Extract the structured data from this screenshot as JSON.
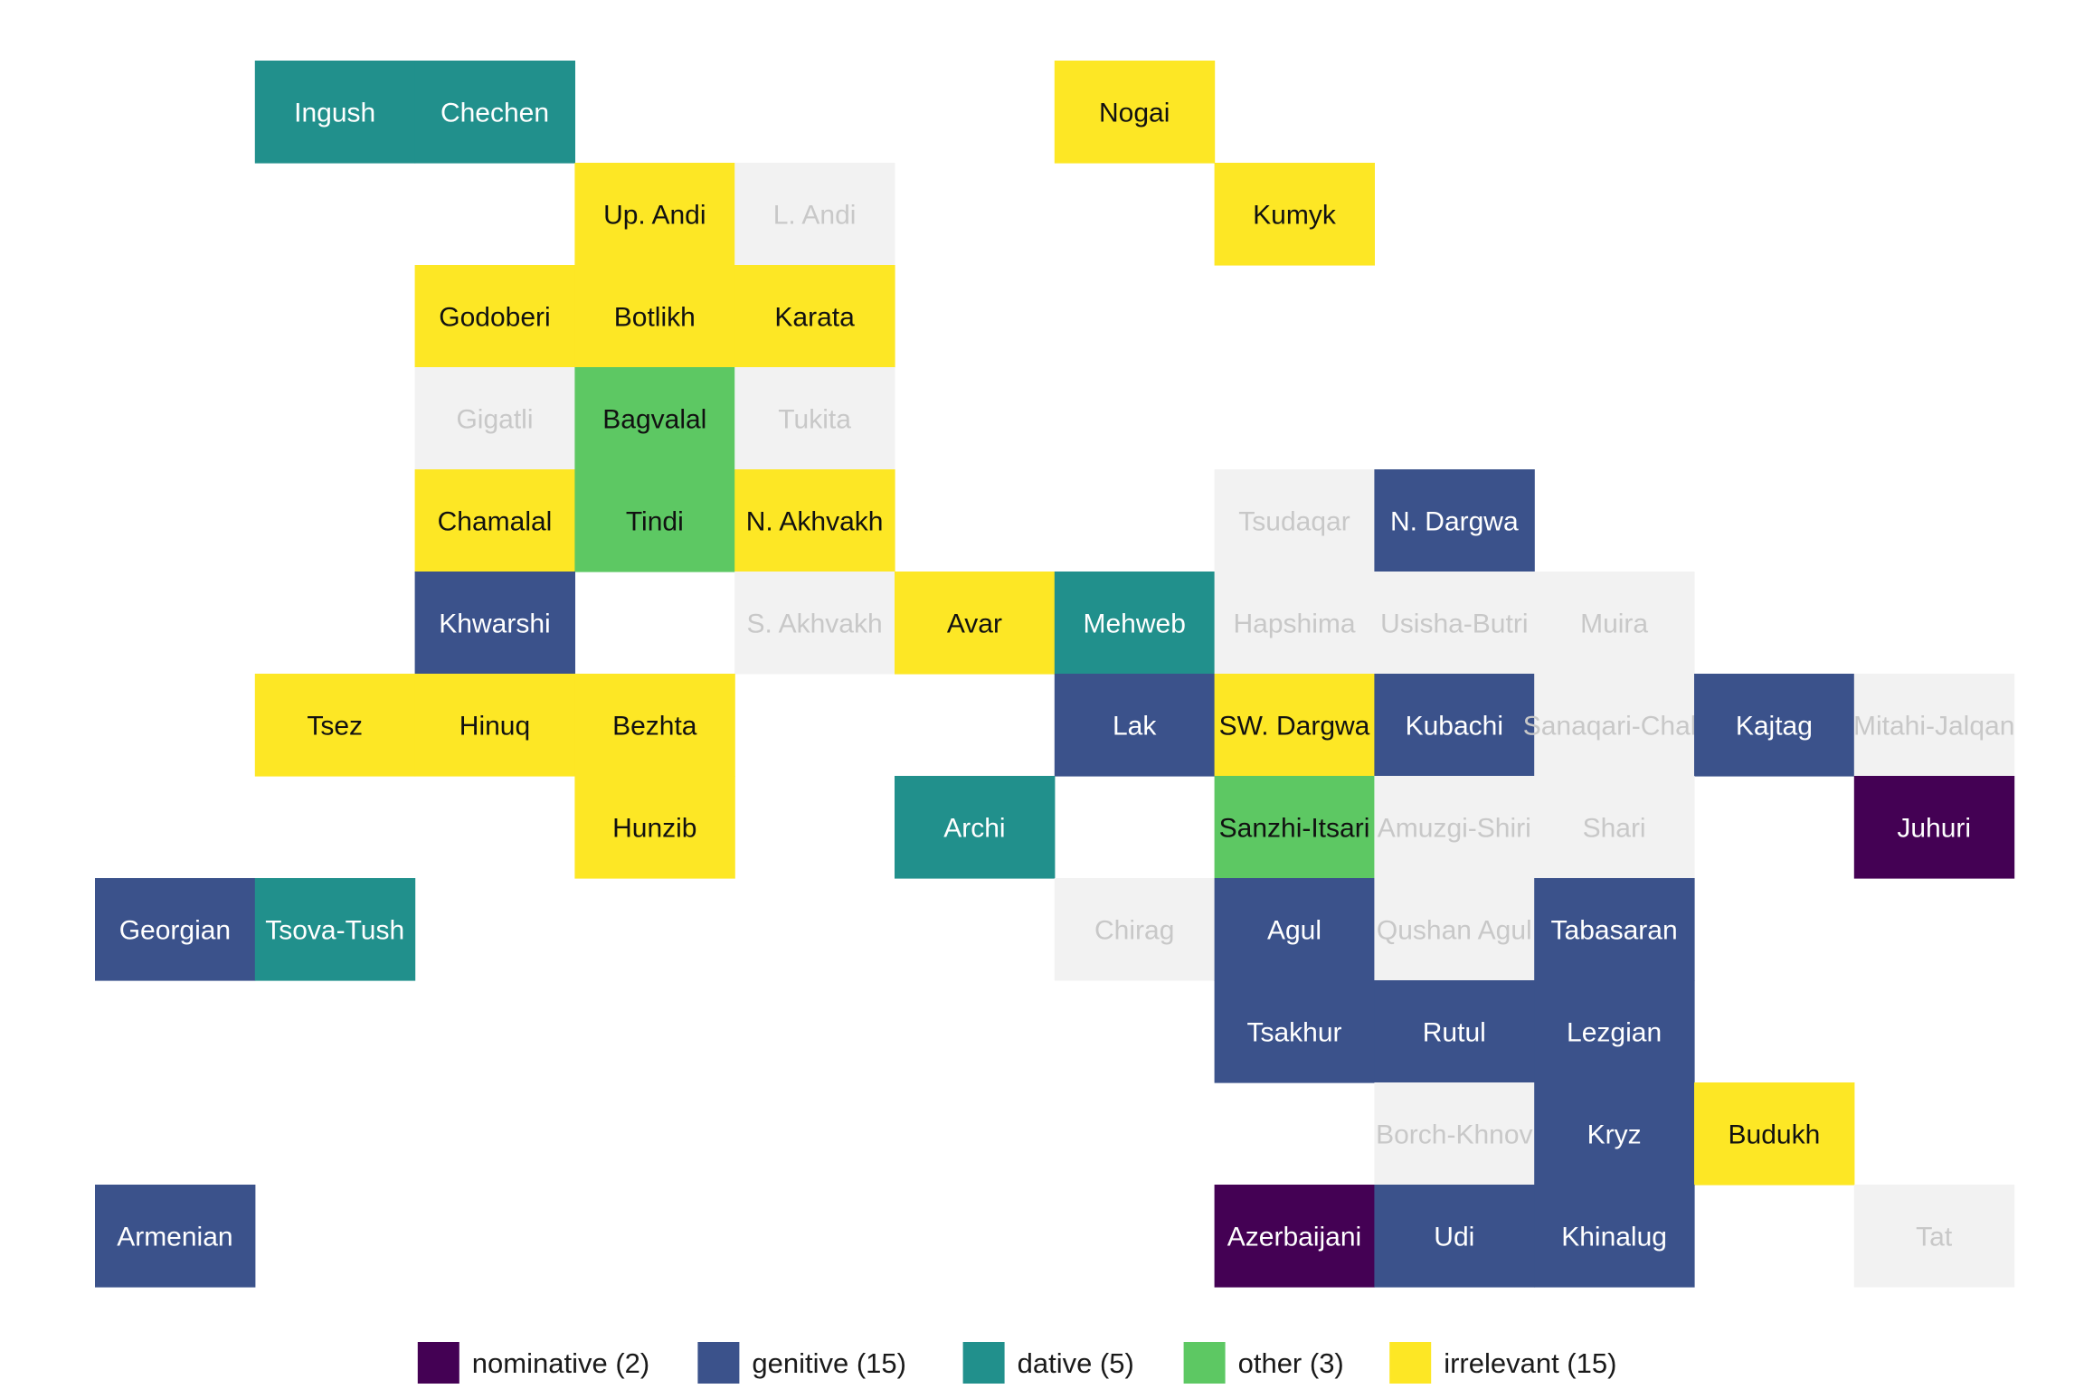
{
  "chart_data": {
    "type": "heatmap",
    "title": "",
    "categories": [
      {
        "key": "nominative",
        "label": "nominative (2)",
        "color": "#440154"
      },
      {
        "key": "genitive",
        "label": "genitive (15)",
        "color": "#3B528B"
      },
      {
        "key": "dative",
        "label": "dative (5)",
        "color": "#21908C"
      },
      {
        "key": "other",
        "label": "other (3)",
        "color": "#5DC863"
      },
      {
        "key": "irrelevant",
        "label": "irrelevant (15)",
        "color": "#FDE725"
      }
    ],
    "no_data_color": "#F2F2F2",
    "no_data_text_color": "#C8C8C8",
    "legend_position": "bottom",
    "tiles": [
      {
        "name": "Ingush",
        "col": 1,
        "row": 0,
        "value": "dative"
      },
      {
        "name": "Chechen",
        "col": 2,
        "row": 0,
        "value": "dative"
      },
      {
        "name": "Nogai",
        "col": 6,
        "row": 0,
        "value": "irrelevant"
      },
      {
        "name": "Up. Andi",
        "col": 3,
        "row": 1,
        "value": "irrelevant"
      },
      {
        "name": "L. Andi",
        "col": 4,
        "row": 1,
        "value": null
      },
      {
        "name": "Kumyk",
        "col": 7,
        "row": 1,
        "value": "irrelevant"
      },
      {
        "name": "Godoberi",
        "col": 2,
        "row": 2,
        "value": "irrelevant"
      },
      {
        "name": "Botlikh",
        "col": 3,
        "row": 2,
        "value": "irrelevant"
      },
      {
        "name": "Karata",
        "col": 4,
        "row": 2,
        "value": "irrelevant"
      },
      {
        "name": "Gigatli",
        "col": 2,
        "row": 3,
        "value": null
      },
      {
        "name": "Bagvalal",
        "col": 3,
        "row": 3,
        "value": "other"
      },
      {
        "name": "Tukita",
        "col": 4,
        "row": 3,
        "value": null
      },
      {
        "name": "Chamalal",
        "col": 2,
        "row": 4,
        "value": "irrelevant"
      },
      {
        "name": "Tindi",
        "col": 3,
        "row": 4,
        "value": "other"
      },
      {
        "name": "N. Akhvakh",
        "col": 4,
        "row": 4,
        "value": "irrelevant"
      },
      {
        "name": "Tsudaqar",
        "col": 7,
        "row": 4,
        "value": null
      },
      {
        "name": "N. Dargwa",
        "col": 8,
        "row": 4,
        "value": "genitive"
      },
      {
        "name": "Khwarshi",
        "col": 2,
        "row": 5,
        "value": "genitive"
      },
      {
        "name": "S. Akhvakh",
        "col": 4,
        "row": 5,
        "value": null
      },
      {
        "name": "Avar",
        "col": 5,
        "row": 5,
        "value": "irrelevant"
      },
      {
        "name": "Mehweb",
        "col": 6,
        "row": 5,
        "value": "dative"
      },
      {
        "name": "Hapshima",
        "col": 7,
        "row": 5,
        "value": null
      },
      {
        "name": "Usisha-Butri",
        "col": 8,
        "row": 5,
        "value": null
      },
      {
        "name": "Muira",
        "col": 9,
        "row": 5,
        "value": null
      },
      {
        "name": "Tsez",
        "col": 1,
        "row": 6,
        "value": "irrelevant"
      },
      {
        "name": "Hinuq",
        "col": 2,
        "row": 6,
        "value": "irrelevant"
      },
      {
        "name": "Bezhta",
        "col": 3,
        "row": 6,
        "value": "irrelevant"
      },
      {
        "name": "Lak",
        "col": 6,
        "row": 6,
        "value": "genitive"
      },
      {
        "name": "SW. Dargwa",
        "col": 7,
        "row": 6,
        "value": "irrelevant"
      },
      {
        "name": "Kubachi",
        "col": 8,
        "row": 6,
        "value": "genitive"
      },
      {
        "name": "Sanaqari-Chah",
        "col": 9,
        "row": 6,
        "value": null
      },
      {
        "name": "Kajtag",
        "col": 10,
        "row": 6,
        "value": "genitive"
      },
      {
        "name": "Mitahi-Jalqan",
        "col": 11,
        "row": 6,
        "value": null
      },
      {
        "name": "Hunzib",
        "col": 3,
        "row": 7,
        "value": "irrelevant"
      },
      {
        "name": "Archi",
        "col": 5,
        "row": 7,
        "value": "dative"
      },
      {
        "name": "Sanzhi-Itsari",
        "col": 7,
        "row": 7,
        "value": "other"
      },
      {
        "name": "Amuzgi-Shiri",
        "col": 8,
        "row": 7,
        "value": null
      },
      {
        "name": "Shari",
        "col": 9,
        "row": 7,
        "value": null
      },
      {
        "name": "Juhuri",
        "col": 11,
        "row": 7,
        "value": "nominative"
      },
      {
        "name": "Georgian",
        "col": 0,
        "row": 8,
        "value": "genitive"
      },
      {
        "name": "Tsova-Tush",
        "col": 1,
        "row": 8,
        "value": "dative"
      },
      {
        "name": "Chirag",
        "col": 6,
        "row": 8,
        "value": null
      },
      {
        "name": "Agul",
        "col": 7,
        "row": 8,
        "value": "genitive"
      },
      {
        "name": "Qushan Agul",
        "col": 8,
        "row": 8,
        "value": null
      },
      {
        "name": "Tabasaran",
        "col": 9,
        "row": 8,
        "value": "genitive"
      },
      {
        "name": "Tsakhur",
        "col": 7,
        "row": 9,
        "value": "genitive"
      },
      {
        "name": "Rutul",
        "col": 8,
        "row": 9,
        "value": "genitive"
      },
      {
        "name": "Lezgian",
        "col": 9,
        "row": 9,
        "value": "genitive"
      },
      {
        "name": "Borch-Khnov",
        "col": 8,
        "row": 10,
        "value": null
      },
      {
        "name": "Kryz",
        "col": 9,
        "row": 10,
        "value": "genitive"
      },
      {
        "name": "Budukh",
        "col": 10,
        "row": 10,
        "value": "irrelevant"
      },
      {
        "name": "Armenian",
        "col": 0,
        "row": 11,
        "value": "genitive"
      },
      {
        "name": "Azerbaijani",
        "col": 7,
        "row": 11,
        "value": "nominative"
      },
      {
        "name": "Udi",
        "col": 8,
        "row": 11,
        "value": "genitive"
      },
      {
        "name": "Khinalug",
        "col": 9,
        "row": 11,
        "value": "genitive"
      },
      {
        "name": "Tat",
        "col": 11,
        "row": 11,
        "value": null
      }
    ]
  }
}
